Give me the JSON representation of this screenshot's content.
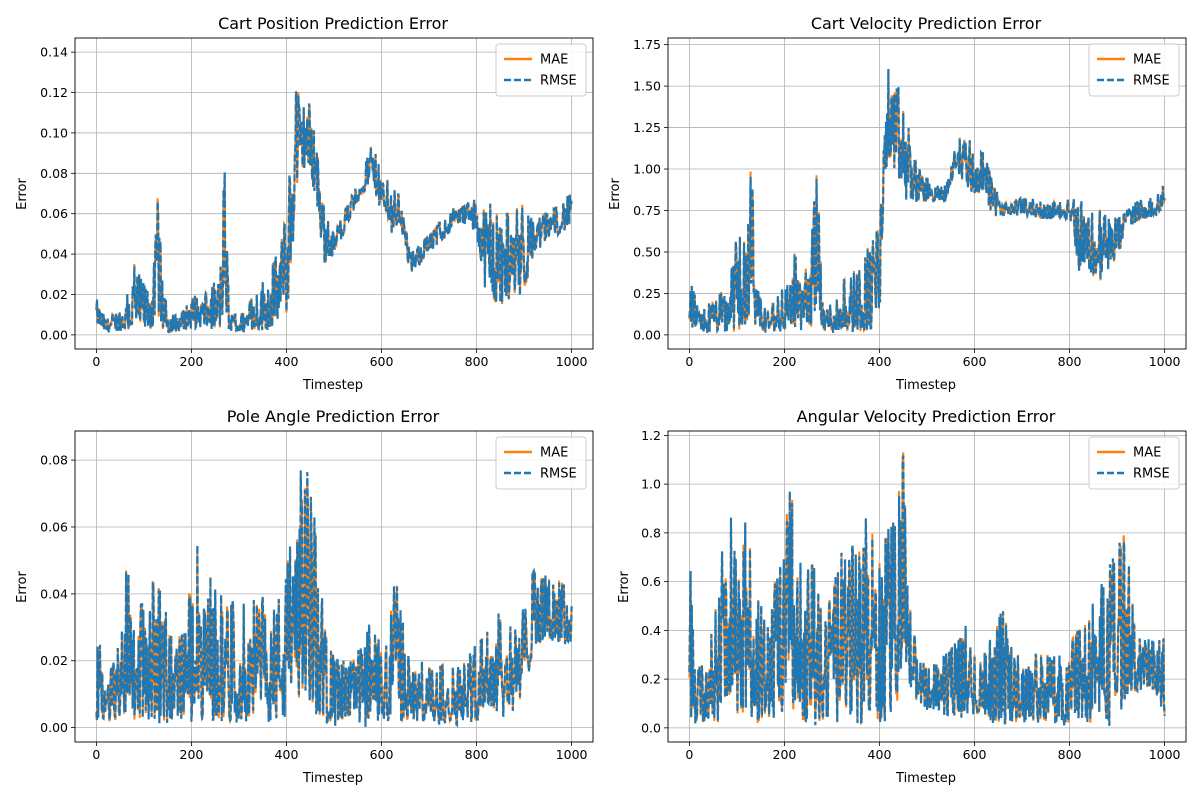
{
  "figure": {
    "background": "#ffffff"
  },
  "colors": {
    "mae": "#ff7f0e",
    "rmse": "#1f77b4",
    "grid": "#b0b0b0"
  },
  "chart_data": [
    {
      "type": "line",
      "title": "Cart Position Prediction Error",
      "xlabel": "Timestep",
      "ylabel": "Error",
      "xlim": [
        -45,
        1045
      ],
      "ylim": [
        -0.007,
        0.147
      ],
      "xticks": [
        0,
        200,
        400,
        600,
        800,
        1000
      ],
      "xtick_labels": [
        "0",
        "200",
        "400",
        "600",
        "800",
        "1000"
      ],
      "yticks": [
        0,
        0.02,
        0.04,
        0.06,
        0.08,
        0.1,
        0.12,
        0.14
      ],
      "ytick_labels": [
        "0.00",
        "0.02",
        "0.04",
        "0.06",
        "0.08",
        "0.10",
        "0.12",
        "0.14"
      ],
      "grid": true,
      "legend": "top-right",
      "series": [
        {
          "name": "MAE",
          "color": "#ff7f0e",
          "style": "solid"
        },
        {
          "name": "RMSE",
          "color": "#1f77b4",
          "style": "dashed"
        }
      ],
      "envelope": {
        "x": [
          0,
          20,
          40,
          60,
          80,
          100,
          120,
          130,
          140,
          160,
          180,
          200,
          220,
          240,
          260,
          270,
          280,
          300,
          320,
          340,
          360,
          380,
          400,
          410,
          420,
          430,
          440,
          460,
          480,
          500,
          520,
          540,
          560,
          580,
          600,
          620,
          640,
          660,
          680,
          700,
          720,
          740,
          760,
          780,
          800,
          820,
          840,
          860,
          880,
          900,
          920,
          940,
          960,
          980,
          1000
        ],
        "lower": [
          0.005,
          0.001,
          0.002,
          0.002,
          0.001,
          0.002,
          0.003,
          0.01,
          0.002,
          0.001,
          0.002,
          0.003,
          0.004,
          0.003,
          0.002,
          0.015,
          0.001,
          0.001,
          0.002,
          0.002,
          0.003,
          0.005,
          0.01,
          0.03,
          0.07,
          0.08,
          0.085,
          0.07,
          0.035,
          0.04,
          0.05,
          0.06,
          0.07,
          0.075,
          0.06,
          0.05,
          0.055,
          0.03,
          0.035,
          0.04,
          0.045,
          0.05,
          0.055,
          0.055,
          0.05,
          0.02,
          0.015,
          0.015,
          0.02,
          0.02,
          0.04,
          0.045,
          0.05,
          0.05,
          0.055
        ],
        "upper": [
          0.018,
          0.008,
          0.012,
          0.015,
          0.035,
          0.025,
          0.03,
          0.073,
          0.02,
          0.01,
          0.012,
          0.02,
          0.018,
          0.022,
          0.03,
          0.085,
          0.01,
          0.01,
          0.015,
          0.025,
          0.03,
          0.04,
          0.06,
          0.09,
          0.14,
          0.11,
          0.12,
          0.11,
          0.06,
          0.05,
          0.06,
          0.07,
          0.08,
          0.095,
          0.08,
          0.075,
          0.07,
          0.04,
          0.045,
          0.05,
          0.055,
          0.06,
          0.065,
          0.065,
          0.068,
          0.068,
          0.06,
          0.06,
          0.062,
          0.065,
          0.055,
          0.06,
          0.062,
          0.068,
          0.07
        ]
      }
    },
    {
      "type": "line",
      "title": "Cart Velocity Prediction Error",
      "xlabel": "Timestep",
      "ylabel": "Error",
      "xlim": [
        -45,
        1045
      ],
      "ylim": [
        -0.085,
        1.79
      ],
      "xticks": [
        0,
        200,
        400,
        600,
        800,
        1000
      ],
      "xtick_labels": [
        "0",
        "200",
        "400",
        "600",
        "800",
        "1000"
      ],
      "yticks": [
        0,
        0.25,
        0.5,
        0.75,
        1.0,
        1.25,
        1.5,
        1.75
      ],
      "ytick_labels": [
        "0.00",
        "0.25",
        "0.50",
        "0.75",
        "1.00",
        "1.25",
        "1.50",
        "1.75"
      ],
      "grid": true,
      "legend": "top-right",
      "series": [
        {
          "name": "MAE",
          "color": "#ff7f0e",
          "style": "solid"
        },
        {
          "name": "RMSE",
          "color": "#1f77b4",
          "style": "dashed"
        }
      ],
      "envelope": {
        "x": [
          0,
          20,
          40,
          60,
          80,
          100,
          120,
          130,
          140,
          160,
          180,
          200,
          220,
          240,
          260,
          270,
          280,
          300,
          320,
          340,
          360,
          380,
          400,
          410,
          420,
          430,
          440,
          460,
          480,
          500,
          520,
          540,
          560,
          580,
          600,
          620,
          640,
          660,
          680,
          700,
          720,
          740,
          760,
          780,
          800,
          820,
          840,
          860,
          880,
          900,
          920,
          940,
          960,
          980,
          1000
        ],
        "lower": [
          0.05,
          0.01,
          0.01,
          0.02,
          0.01,
          0.02,
          0.03,
          0.2,
          0.02,
          0.01,
          0.02,
          0.02,
          0.03,
          0.03,
          0.05,
          0.3,
          0.01,
          0.01,
          0.02,
          0.02,
          0.02,
          0.03,
          0.05,
          0.95,
          1.05,
          1.0,
          0.9,
          0.8,
          0.8,
          0.8,
          0.8,
          0.8,
          1.0,
          0.9,
          0.85,
          0.85,
          0.7,
          0.72,
          0.72,
          0.72,
          0.72,
          0.7,
          0.7,
          0.7,
          0.7,
          0.4,
          0.4,
          0.3,
          0.4,
          0.45,
          0.65,
          0.68,
          0.7,
          0.72,
          0.78
        ],
        "upper": [
          0.35,
          0.15,
          0.2,
          0.25,
          0.3,
          0.6,
          0.55,
          1.12,
          0.3,
          0.15,
          0.2,
          0.3,
          0.5,
          0.35,
          0.7,
          1.05,
          0.2,
          0.2,
          0.3,
          0.4,
          0.45,
          0.55,
          0.65,
          1.2,
          1.72,
          1.45,
          1.5,
          1.3,
          1.0,
          0.95,
          0.9,
          0.9,
          1.15,
          1.28,
          1.1,
          1.1,
          0.9,
          0.8,
          0.82,
          0.82,
          0.82,
          0.8,
          0.8,
          0.8,
          0.82,
          0.82,
          0.75,
          0.8,
          0.7,
          0.7,
          0.75,
          0.8,
          0.82,
          0.82,
          0.92
        ]
      }
    },
    {
      "type": "line",
      "title": "Pole Angle Prediction Error",
      "xlabel": "Timestep",
      "ylabel": "Error",
      "xlim": [
        -45,
        1045
      ],
      "ylim": [
        -0.0043,
        0.0887
      ],
      "xticks": [
        0,
        200,
        400,
        600,
        800,
        1000
      ],
      "xtick_labels": [
        "0",
        "200",
        "400",
        "600",
        "800",
        "1000"
      ],
      "yticks": [
        0,
        0.02,
        0.04,
        0.06,
        0.08
      ],
      "ytick_labels": [
        "0.00",
        "0.02",
        "0.04",
        "0.06",
        "0.08"
      ],
      "grid": true,
      "legend": "top-right",
      "series": [
        {
          "name": "MAE",
          "color": "#ff7f0e",
          "style": "solid"
        },
        {
          "name": "RMSE",
          "color": "#1f77b4",
          "style": "dashed"
        }
      ],
      "envelope": {
        "x": [
          0,
          20,
          40,
          60,
          65,
          80,
          100,
          120,
          140,
          160,
          180,
          200,
          210,
          220,
          240,
          260,
          280,
          300,
          320,
          340,
          360,
          380,
          400,
          420,
          440,
          460,
          480,
          500,
          520,
          540,
          560,
          580,
          600,
          620,
          630,
          640,
          660,
          680,
          700,
          720,
          740,
          760,
          780,
          800,
          820,
          840,
          860,
          880,
          900,
          920,
          940,
          960,
          980,
          1000
        ],
        "lower": [
          0.002,
          0.001,
          0.002,
          0.003,
          0.01,
          0.002,
          0.003,
          0.003,
          0.002,
          0.002,
          0.003,
          0.003,
          0.01,
          0.002,
          0.002,
          0.002,
          0.002,
          0.002,
          0.003,
          0.003,
          0.002,
          0.003,
          0.003,
          0.008,
          0.01,
          0.005,
          0.002,
          0.001,
          0.001,
          0.002,
          0.001,
          0.001,
          0.002,
          0.002,
          0.01,
          0.002,
          0.002,
          0.001,
          0.002,
          0.001,
          0.002,
          0.001,
          0.002,
          0.002,
          0.005,
          0.005,
          0.003,
          0.005,
          0.008,
          0.025,
          0.025,
          0.026,
          0.025,
          0.025
        ],
        "upper": [
          0.03,
          0.015,
          0.02,
          0.035,
          0.059,
          0.04,
          0.035,
          0.044,
          0.04,
          0.025,
          0.03,
          0.045,
          0.062,
          0.03,
          0.045,
          0.04,
          0.035,
          0.04,
          0.035,
          0.041,
          0.035,
          0.04,
          0.045,
          0.085,
          0.079,
          0.06,
          0.03,
          0.02,
          0.02,
          0.02,
          0.025,
          0.032,
          0.025,
          0.035,
          0.053,
          0.035,
          0.02,
          0.02,
          0.018,
          0.018,
          0.02,
          0.018,
          0.02,
          0.025,
          0.028,
          0.035,
          0.03,
          0.03,
          0.035,
          0.047,
          0.045,
          0.044,
          0.044,
          0.04
        ]
      }
    },
    {
      "type": "line",
      "title": "Angular Velocity Prediction Error",
      "xlabel": "Timestep",
      "ylabel": "Error",
      "xlim": [
        -45,
        1045
      ],
      "ylim": [
        -0.058,
        1.218
      ],
      "xticks": [
        0,
        200,
        400,
        600,
        800,
        1000
      ],
      "xtick_labels": [
        "0",
        "200",
        "400",
        "600",
        "800",
        "1000"
      ],
      "yticks": [
        0,
        0.2,
        0.4,
        0.6,
        0.8,
        1.0,
        1.2
      ],
      "ytick_labels": [
        "0.0",
        "0.2",
        "0.4",
        "0.6",
        "0.8",
        "1.0",
        "1.2"
      ],
      "grid": true,
      "legend": "top-right",
      "series": [
        {
          "name": "MAE",
          "color": "#ff7f0e",
          "style": "solid"
        },
        {
          "name": "RMSE",
          "color": "#1f77b4",
          "style": "dashed"
        }
      ],
      "envelope": {
        "x": [
          0,
          20,
          40,
          60,
          70,
          80,
          90,
          100,
          120,
          140,
          160,
          180,
          200,
          210,
          220,
          240,
          260,
          280,
          300,
          320,
          340,
          360,
          380,
          400,
          420,
          440,
          450,
          460,
          480,
          500,
          520,
          540,
          560,
          580,
          600,
          620,
          640,
          660,
          680,
          700,
          720,
          740,
          760,
          780,
          800,
          820,
          840,
          860,
          880,
          900,
          910,
          920,
          940,
          960,
          980,
          1000
        ],
        "lower": [
          0.05,
          0.01,
          0.02,
          0.02,
          0.1,
          0.03,
          0.05,
          0.03,
          0.02,
          0.02,
          0.02,
          0.03,
          0.05,
          0.15,
          0.05,
          0.02,
          0.03,
          0.02,
          0.03,
          0.02,
          0.05,
          0.02,
          0.03,
          0.02,
          0.05,
          0.1,
          0.4,
          0.2,
          0.1,
          0.08,
          0.08,
          0.05,
          0.05,
          0.05,
          0.05,
          0.03,
          0.03,
          0.02,
          0.02,
          0.03,
          0.02,
          0.03,
          0.02,
          0.02,
          0.02,
          0.05,
          0.02,
          0.02,
          0.02,
          0.05,
          0.1,
          0.15,
          0.15,
          0.15,
          0.15,
          0.05
        ],
        "upper": [
          0.7,
          0.25,
          0.3,
          0.55,
          1.16,
          0.7,
          0.88,
          0.6,
          0.85,
          0.55,
          0.45,
          0.6,
          0.7,
          1.16,
          0.8,
          0.6,
          0.68,
          0.45,
          0.55,
          0.7,
          0.75,
          0.8,
          0.86,
          0.7,
          0.8,
          0.95,
          1.13,
          0.6,
          0.28,
          0.26,
          0.26,
          0.3,
          0.35,
          0.42,
          0.35,
          0.3,
          0.38,
          0.49,
          0.3,
          0.3,
          0.3,
          0.3,
          0.3,
          0.3,
          0.35,
          0.4,
          0.45,
          0.55,
          0.6,
          0.8,
          0.92,
          0.76,
          0.36,
          0.36,
          0.35,
          0.36
        ]
      }
    }
  ]
}
